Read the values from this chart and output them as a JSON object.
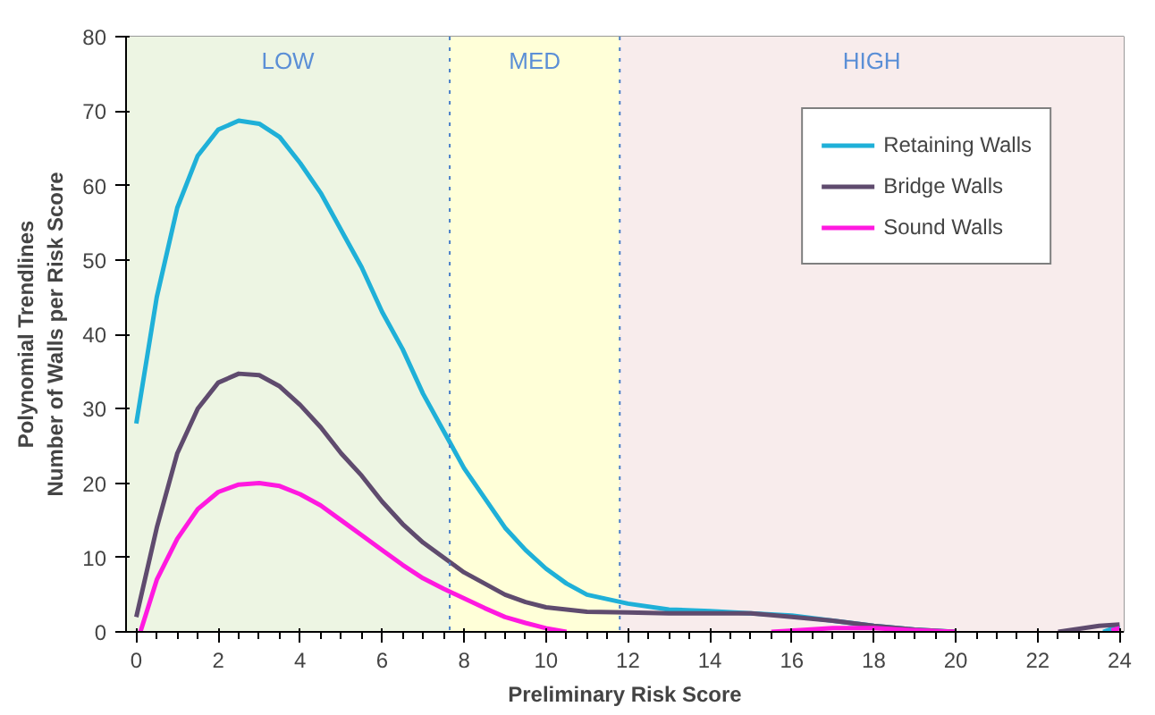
{
  "chart_data": {
    "type": "line",
    "xlabel": "Preliminary Risk Score",
    "ylabel": "Polynomial Trendlines\nNumber of Walls per Risk Score",
    "xlim": [
      -0.25,
      24.1
    ],
    "ylim": [
      0,
      80
    ],
    "xticks": [
      0,
      2,
      4,
      6,
      8,
      10,
      12,
      14,
      16,
      18,
      20,
      22,
      24
    ],
    "yticks": [
      0,
      10,
      20,
      30,
      40,
      50,
      60,
      70,
      80
    ],
    "grid": "y",
    "legend": "top right",
    "line_style": "solid",
    "bands": [
      {
        "axis": "x",
        "from": -0.25,
        "to": 7.65,
        "label": "LOW",
        "color": "#edf5e3"
      },
      {
        "axis": "x",
        "from": 7.65,
        "to": 11.8,
        "label": "MED",
        "color": "#ffffd8"
      },
      {
        "axis": "x",
        "from": 11.8,
        "to": 24.1,
        "label": "HIGH",
        "color": "#f8ecec"
      }
    ],
    "ref_lines": [
      {
        "axis": "x",
        "value": 7.65,
        "color": "#4a7fc8",
        "line_style": "dotted"
      },
      {
        "axis": "x",
        "value": 11.8,
        "color": "#4a7fc8",
        "line_style": "dotted"
      }
    ],
    "series": [
      {
        "name": "Retaining Walls",
        "color": "#1fb0d8",
        "x": [
          0,
          0.5,
          1,
          1.5,
          2,
          2.5,
          3,
          3.5,
          4,
          4.5,
          5,
          5.5,
          6,
          6.5,
          7,
          7.5,
          8,
          8.5,
          9,
          9.5,
          10,
          10.5,
          11,
          12,
          13,
          14,
          15,
          16,
          17,
          18,
          19,
          20,
          21,
          23.6,
          24
        ],
        "values": [
          28,
          45,
          57,
          64,
          67.5,
          68.7,
          68.3,
          66.5,
          63,
          59,
          54,
          49,
          43,
          38,
          32,
          27,
          22,
          18,
          14,
          11,
          8.5,
          6.5,
          5,
          3.8,
          3,
          2.8,
          2.5,
          2.2,
          1.5,
          0.8,
          0.3,
          0,
          null,
          0,
          0.8
        ]
      },
      {
        "name": "Bridge Walls",
        "color": "#5f4b6e",
        "x": [
          0,
          0.5,
          1,
          1.5,
          2,
          2.5,
          3,
          3.5,
          4,
          4.5,
          5,
          5.5,
          6,
          6.5,
          7,
          7.5,
          8,
          8.5,
          9,
          9.5,
          10,
          11,
          12,
          13,
          14,
          15,
          16,
          17,
          18,
          19,
          20,
          21,
          22.5,
          23.5,
          24
        ],
        "values": [
          2,
          14,
          24,
          30,
          33.5,
          34.7,
          34.5,
          33,
          30.5,
          27.5,
          24,
          21,
          17.5,
          14.5,
          12,
          10,
          8,
          6.5,
          5,
          4,
          3.3,
          2.7,
          2.6,
          2.5,
          2.5,
          2.5,
          2,
          1.5,
          0.8,
          0.3,
          0,
          null,
          0,
          0.8,
          1
        ]
      },
      {
        "name": "Sound Walls",
        "color": "#ff19e0",
        "x": [
          0.1,
          0.5,
          1,
          1.5,
          2,
          2.5,
          3,
          3.5,
          4,
          4.5,
          5,
          5.5,
          6,
          6.5,
          7,
          7.5,
          8,
          8.5,
          9,
          9.5,
          10,
          10.5,
          13,
          15.5,
          17,
          18,
          19,
          20,
          22,
          23.8,
          24
        ],
        "values": [
          0,
          7,
          12.5,
          16.5,
          18.8,
          19.8,
          20,
          19.6,
          18.5,
          17,
          15,
          13,
          11,
          9,
          7.2,
          5.8,
          4.5,
          3.2,
          2,
          1.2,
          0.5,
          0,
          null,
          0,
          0.5,
          0.5,
          0.2,
          0,
          null,
          0.2,
          0.5
        ]
      }
    ]
  }
}
